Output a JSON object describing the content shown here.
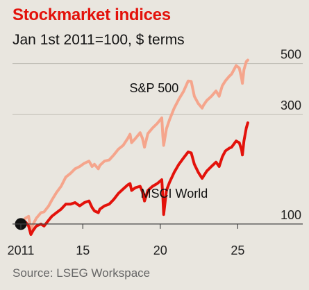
{
  "chart_data": {
    "type": "line",
    "title": "Stockmarket indices",
    "subtitle": "Jan 1st 2011=100, $ terms",
    "source": "Source: LSEG Workspace",
    "y_scale": "log",
    "ylim": [
      90,
      520
    ],
    "xlim": [
      2011.0,
      2025.7
    ],
    "y_ticks": [
      {
        "value": 100,
        "label": "100"
      },
      {
        "value": 300,
        "label": "300"
      },
      {
        "value": 500,
        "label": "500"
      }
    ],
    "x_ticks": [
      {
        "value": 2011,
        "label": "2011"
      },
      {
        "value": 2015,
        "label": "15"
      },
      {
        "value": 2020,
        "label": "20"
      },
      {
        "value": 2025,
        "label": "25"
      }
    ],
    "grid": true,
    "start_point": {
      "x": 2011.0,
      "y": 100
    },
    "colors": {
      "sp500": "#f5a58c",
      "msci": "#e3120b",
      "title": "#e3120b",
      "grid": "#bdbab2",
      "marker": "#111111"
    },
    "series": [
      {
        "name": "S&P 500",
        "color": "#f5a58c",
        "label_at": {
          "x": 2019.6,
          "y": 375
        },
        "x": [
          2011.0,
          2011.3,
          2011.5,
          2011.65,
          2011.8,
          2012.0,
          2012.3,
          2012.5,
          2012.8,
          2013.0,
          2013.3,
          2013.6,
          2013.9,
          2014.2,
          2014.5,
          2014.8,
          2015.1,
          2015.4,
          2015.6,
          2015.75,
          2016.0,
          2016.1,
          2016.4,
          2016.7,
          2017.0,
          2017.3,
          2017.6,
          2017.9,
          2018.05,
          2018.15,
          2018.4,
          2018.7,
          2018.85,
          2018.98,
          2019.2,
          2019.5,
          2019.8,
          2020.1,
          2020.17,
          2020.22,
          2020.4,
          2020.6,
          2020.9,
          2021.2,
          2021.5,
          2021.8,
          2022.0,
          2022.2,
          2022.45,
          2022.7,
          2022.8,
          2023.0,
          2023.3,
          2023.6,
          2023.8,
          2024.0,
          2024.2,
          2024.45,
          2024.6,
          2024.9,
          2025.1,
          2025.25,
          2025.3,
          2025.4,
          2025.55,
          2025.65
        ],
        "values": [
          100,
          106,
          108,
          94,
          100,
          106,
          112,
          113,
          120,
          127,
          137,
          146,
          160,
          166,
          174,
          178,
          184,
          188,
          178,
          182,
          174,
          180,
          188,
          190,
          200,
          212,
          220,
          236,
          246,
          226,
          236,
          250,
          236,
          216,
          248,
          262,
          274,
          290,
          240,
          220,
          260,
          285,
          320,
          350,
          378,
          420,
          418,
          360,
          335,
          320,
          330,
          345,
          360,
          380,
          360,
          400,
          420,
          440,
          450,
          490,
          478,
          430,
          410,
          470,
          510,
          518
        ]
      },
      {
        "name": "MSCI World",
        "color": "#e3120b",
        "label_at": {
          "x": 2020.9,
          "y": 130
        },
        "x": [
          2011.0,
          2011.3,
          2011.5,
          2011.65,
          2011.8,
          2012.0,
          2012.3,
          2012.5,
          2012.8,
          2013.0,
          2013.3,
          2013.6,
          2013.9,
          2014.2,
          2014.5,
          2014.8,
          2015.1,
          2015.4,
          2015.6,
          2015.75,
          2016.0,
          2016.1,
          2016.4,
          2016.7,
          2017.0,
          2017.3,
          2017.6,
          2017.9,
          2018.05,
          2018.15,
          2018.4,
          2018.7,
          2018.85,
          2018.98,
          2019.2,
          2019.5,
          2019.8,
          2020.1,
          2020.17,
          2020.22,
          2020.4,
          2020.6,
          2020.9,
          2021.2,
          2021.5,
          2021.8,
          2022.0,
          2022.2,
          2022.45,
          2022.7,
          2022.8,
          2023.0,
          2023.3,
          2023.6,
          2023.8,
          2024.0,
          2024.2,
          2024.45,
          2024.6,
          2024.9,
          2025.1,
          2025.25,
          2025.3,
          2025.4,
          2025.55,
          2025.65
        ],
        "values": [
          100,
          102,
          98,
          90,
          94,
          98,
          100,
          98,
          104,
          108,
          112,
          116,
          122,
          122,
          124,
          120,
          124,
          126,
          118,
          114,
          112,
          116,
          120,
          122,
          128,
          136,
          142,
          148,
          150,
          140,
          144,
          146,
          138,
          126,
          140,
          146,
          150,
          156,
          130,
          110,
          140,
          152,
          168,
          182,
          194,
          206,
          204,
          182,
          168,
          158,
          162,
          170,
          178,
          186,
          178,
          196,
          208,
          214,
          216,
          230,
          226,
          210,
          200,
          230,
          262,
          276
        ]
      }
    ]
  }
}
